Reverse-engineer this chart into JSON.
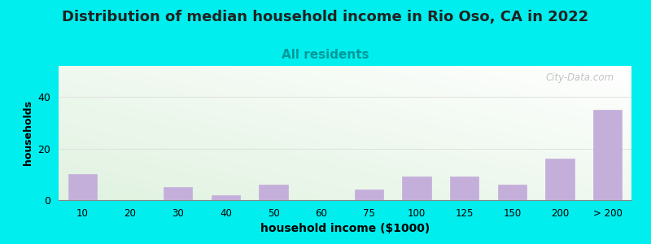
{
  "title": "Distribution of median household income in Rio Oso, CA in 2022",
  "subtitle": "All residents",
  "xlabel": "household income ($1000)",
  "ylabel": "households",
  "title_fontsize": 13,
  "subtitle_fontsize": 11,
  "background_outer": "#00EEEE",
  "bar_color": "#C4AFDA",
  "bar_edgecolor": "#C4AFDA",
  "categories": [
    "10",
    "20",
    "30",
    "40",
    "50",
    "60",
    "75",
    "100",
    "125",
    "150",
    "200",
    "> 200"
  ],
  "values": [
    10,
    0,
    5,
    2,
    6,
    0,
    4,
    9,
    9,
    6,
    16,
    35
  ],
  "ylim": [
    0,
    52
  ],
  "yticks": [
    0,
    20,
    40
  ],
  "watermark": "City-Data.com"
}
